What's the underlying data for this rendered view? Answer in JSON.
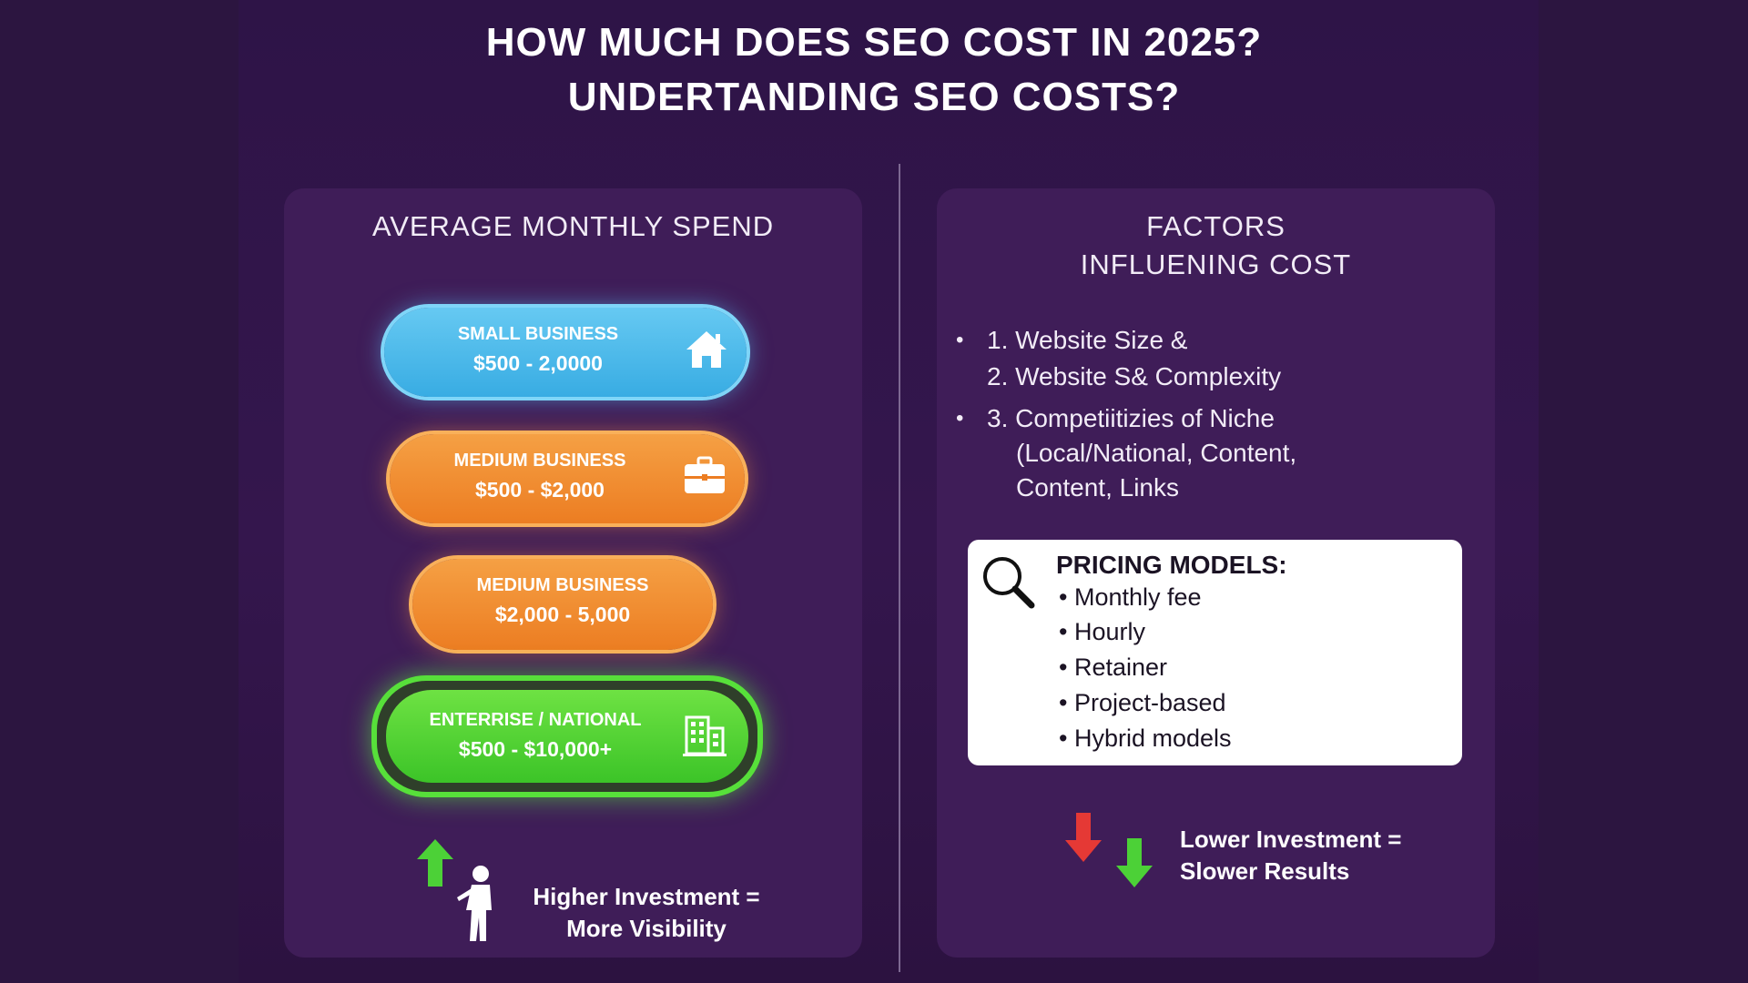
{
  "title": {
    "line1": "HOW MUCH DOES SEO COST IN 2025?",
    "line2": "UNDERTANDING SEO COSTS?"
  },
  "left_panel": {
    "heading": "AVERAGE MONTHLY SPEND",
    "tiers": [
      {
        "name": "SMALL BUSINESS",
        "range": "$500 - 2,0000",
        "icon": "house-icon",
        "color": "#4fbcec"
      },
      {
        "name": "MEDIUM BUSINESS",
        "range": "$500 - $2,000",
        "icon": "briefcase-icon",
        "color": "#f08c30"
      },
      {
        "name": "MEDIUM BUSINESS",
        "range": "$2,000 - 5,000",
        "icon": "",
        "color": "#f08c30"
      },
      {
        "name": "ENTERRISE / NATIONAL",
        "range": "$500 - $10,000+",
        "icon": "building-icon",
        "color": "#55d936"
      }
    ],
    "note": {
      "line1": "Higher Investment =",
      "line2": "More Visibility",
      "icons": [
        "arrow-up-icon",
        "person-icon"
      ]
    }
  },
  "right_panel": {
    "heading": {
      "line1": "FACTORS",
      "line2": "INFLUENING COST"
    },
    "factors": [
      {
        "lines": [
          "1. Website Size &",
          "2. Website S& Complexity"
        ]
      },
      {
        "lines": [
          "3. Competiitizies of Niche",
          "(Local/National, Content,",
          "Content, Links"
        ]
      }
    ],
    "pricing": {
      "title": "PRICING MODELS:",
      "items": [
        "Monthly fee",
        "Hourly",
        "Retainer",
        "Project-based",
        "Hybrid models"
      ],
      "icon": "magnifier-icon"
    },
    "note": {
      "line1": "Lower Investment =",
      "line2": "Slower Results",
      "icons": [
        "arrow-down-red-icon",
        "arrow-down-green-icon"
      ]
    }
  },
  "colors": {
    "background": "#2e1447",
    "panel": "#3f1d58",
    "blue": "#4fbcec",
    "orange": "#f08c30",
    "green": "#55d936",
    "red_arrow": "#e53935"
  }
}
